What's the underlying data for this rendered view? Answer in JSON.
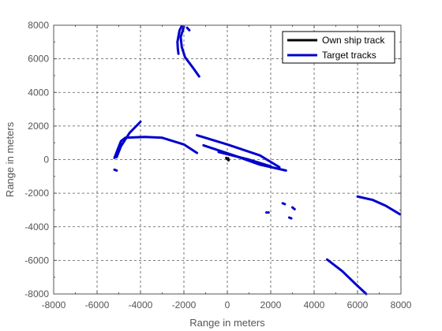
{
  "chart_data": {
    "type": "line",
    "xlabel": "Range in meters",
    "ylabel": "Range in meters",
    "xlim": [
      -8000,
      8000
    ],
    "ylim": [
      -8000,
      8000
    ],
    "x_ticks": [
      -8000,
      -6000,
      -4000,
      -2000,
      0,
      2000,
      4000,
      6000,
      8000
    ],
    "y_ticks": [
      -8000,
      -6000,
      -4000,
      -2000,
      0,
      2000,
      4000,
      6000,
      8000
    ],
    "grid": true,
    "legend_position": "top-right",
    "legend": [
      {
        "name": "Own ship track",
        "color": "#000000"
      },
      {
        "name": "Target tracks",
        "color": "#0000cc"
      }
    ],
    "own_ship_track": [
      [
        -50,
        100
      ],
      [
        20,
        0
      ],
      [
        60,
        -40
      ],
      [
        40,
        80
      ]
    ],
    "target_tracks": [
      [
        [
          -2100,
          7950
        ],
        [
          -2200,
          7700
        ],
        [
          -2250,
          7350
        ],
        [
          -2300,
          7000
        ],
        [
          -2280,
          6600
        ],
        [
          -2250,
          6300
        ]
      ],
      [
        [
          -1850,
          7850
        ],
        [
          -1750,
          7700
        ]
      ],
      [
        [
          -2000,
          7900
        ],
        [
          -2150,
          7300
        ],
        [
          -2100,
          6700
        ],
        [
          -1950,
          6100
        ],
        [
          -1600,
          5500
        ],
        [
          -1300,
          4950
        ]
      ],
      [
        [
          -5200,
          100
        ],
        [
          -5050,
          600
        ],
        [
          -4900,
          1100
        ],
        [
          -4700,
          1300
        ],
        [
          -3800,
          1350
        ],
        [
          -3000,
          1300
        ],
        [
          -2000,
          900
        ],
        [
          -1400,
          400
        ]
      ],
      [
        [
          -5100,
          150
        ],
        [
          -4900,
          800
        ],
        [
          -4500,
          1600
        ],
        [
          -4000,
          2250
        ]
      ],
      [
        [
          -1400,
          1450
        ],
        [
          0,
          900
        ],
        [
          1500,
          250
        ],
        [
          2400,
          -450
        ]
      ],
      [
        [
          -1100,
          850
        ],
        [
          300,
          250
        ],
        [
          1500,
          -300
        ],
        [
          2700,
          -650
        ]
      ],
      [
        [
          -400,
          450
        ],
        [
          1000,
          0
        ],
        [
          2000,
          -400
        ]
      ],
      [
        [
          -5200,
          -600
        ],
        [
          -5100,
          -650
        ]
      ],
      [
        [
          2850,
          -3450
        ],
        [
          2950,
          -3500
        ]
      ],
      [
        [
          3000,
          -2850
        ],
        [
          3100,
          -2950
        ]
      ],
      [
        [
          2550,
          -2600
        ],
        [
          2650,
          -2650
        ]
      ],
      [
        [
          1800,
          -3150
        ],
        [
          1900,
          -3150
        ]
      ],
      [
        [
          6000,
          -2200
        ],
        [
          6700,
          -2400
        ],
        [
          7300,
          -2750
        ],
        [
          7950,
          -3250
        ]
      ],
      [
        [
          4600,
          -5950
        ],
        [
          5300,
          -6650
        ],
        [
          5900,
          -7400
        ],
        [
          6400,
          -8000
        ]
      ]
    ]
  }
}
